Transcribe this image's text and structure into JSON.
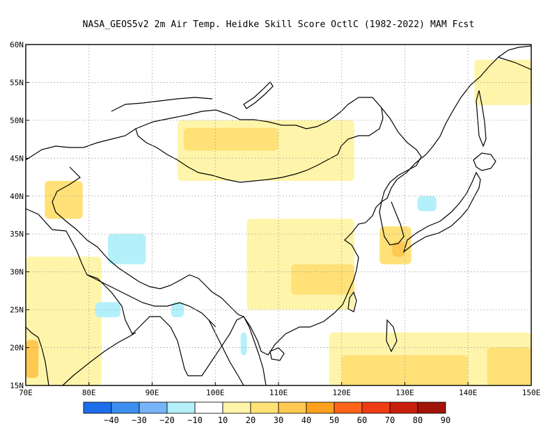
{
  "title": "NASA_GEOS5v2  2m Air Temp. Heidke Skill Score OctlC (1982-2022) MAM Fcst",
  "map": {
    "lon_range": [
      70,
      150
    ],
    "lat_range": [
      15,
      60
    ],
    "lon_ticks": [
      {
        "value": 70,
        "label": "70E"
      },
      {
        "value": 80,
        "label": "80E"
      },
      {
        "value": 90,
        "label": "90E"
      },
      {
        "value": 100,
        "label": "100E"
      },
      {
        "value": 110,
        "label": "110E"
      },
      {
        "value": 120,
        "label": "120E"
      },
      {
        "value": 130,
        "label": "130E"
      },
      {
        "value": 140,
        "label": "140E"
      },
      {
        "value": 150,
        "label": "150E"
      }
    ],
    "lat_ticks": [
      {
        "value": 15,
        "label": "15N"
      },
      {
        "value": 20,
        "label": "20N"
      },
      {
        "value": 25,
        "label": "25N"
      },
      {
        "value": 30,
        "label": "30N"
      },
      {
        "value": 35,
        "label": "35N"
      },
      {
        "value": 40,
        "label": "40N"
      },
      {
        "value": 45,
        "label": "45N"
      },
      {
        "value": 50,
        "label": "50N"
      },
      {
        "value": 55,
        "label": "55N"
      },
      {
        "value": 60,
        "label": "60N"
      }
    ],
    "grid": true,
    "field": {
      "variable": "Heidke Skill Score",
      "regions": [
        {
          "level": 10,
          "lon": [
            70,
            150
          ],
          "lat": [
            15,
            60
          ]
        },
        {
          "level": 0,
          "lon": [
            72,
            82
          ],
          "lat": [
            43,
            50
          ]
        },
        {
          "level": 0,
          "lon": [
            80,
            108
          ],
          "lat": [
            25,
            40
          ]
        },
        {
          "level": 0,
          "lon": [
            118,
            132
          ],
          "lat": [
            22,
            32
          ]
        },
        {
          "level": 0,
          "lon": [
            139,
            150
          ],
          "lat": [
            30,
            42
          ]
        },
        {
          "level": 0,
          "lon": [
            125,
            138
          ],
          "lat": [
            37,
            46
          ]
        },
        {
          "level": 0,
          "lon": [
            70,
            80
          ],
          "lat": [
            53,
            60
          ]
        },
        {
          "level": 20,
          "lon": [
            94,
            122
          ],
          "lat": [
            42,
            50
          ]
        },
        {
          "level": 20,
          "lon": [
            105,
            122
          ],
          "lat": [
            25,
            37
          ]
        },
        {
          "level": 20,
          "lon": [
            70,
            82
          ],
          "lat": [
            15,
            32
          ]
        },
        {
          "level": 20,
          "lon": [
            118,
            150
          ],
          "lat": [
            15,
            22
          ]
        },
        {
          "level": 20,
          "lon": [
            141,
            150
          ],
          "lat": [
            52,
            58
          ]
        },
        {
          "level": 30,
          "lon": [
            73,
            79
          ],
          "lat": [
            37,
            42
          ]
        },
        {
          "level": 30,
          "lon": [
            126,
            131
          ],
          "lat": [
            31,
            36
          ]
        },
        {
          "level": 30,
          "lon": [
            112,
            122
          ],
          "lat": [
            27,
            31
          ]
        },
        {
          "level": 30,
          "lon": [
            120,
            140
          ],
          "lat": [
            15,
            19
          ]
        },
        {
          "level": 30,
          "lon": [
            143,
            150
          ],
          "lat": [
            15,
            20
          ]
        },
        {
          "level": 30,
          "lon": [
            95,
            110
          ],
          "lat": [
            46,
            49
          ]
        },
        {
          "level": 40,
          "lon": [
            70,
            72
          ],
          "lat": [
            16,
            21
          ]
        },
        {
          "level": 40,
          "lon": [
            128,
            130
          ],
          "lat": [
            32,
            34
          ]
        },
        {
          "level": -10,
          "lon": [
            83,
            89
          ],
          "lat": [
            31,
            35
          ]
        },
        {
          "level": -10,
          "lon": [
            81,
            85
          ],
          "lat": [
            24,
            26
          ]
        },
        {
          "level": -10,
          "lon": [
            132,
            135
          ],
          "lat": [
            38,
            40
          ]
        },
        {
          "level": -10,
          "lon": [
            104,
            105
          ],
          "lat": [
            19,
            22
          ]
        },
        {
          "level": -10,
          "lon": [
            93,
            95
          ],
          "lat": [
            24,
            26
          ]
        }
      ]
    },
    "colors": {
      "ocean_white": "#ffffff",
      "frame": "#000000",
      "coast": "#000000",
      "grid": "#999999"
    }
  },
  "colorbar": {
    "levels": [
      -40,
      -30,
      -20,
      -10,
      10,
      20,
      30,
      40,
      50,
      60,
      70,
      80,
      90
    ],
    "labels": [
      "−40",
      "−30",
      "−20",
      "−10",
      "10",
      "20",
      "30",
      "40",
      "50",
      "60",
      "70",
      "80",
      "90"
    ],
    "colors": [
      "#1e6eeb",
      "#3c8ff0",
      "#78b4f8",
      "#b4f0fa",
      "#ffffff",
      "#fff5aa",
      "#ffe178",
      "#ffc850",
      "#ffa01e",
      "#ff6419",
      "#f03c14",
      "#c81e0a",
      "#a0140a"
    ]
  }
}
